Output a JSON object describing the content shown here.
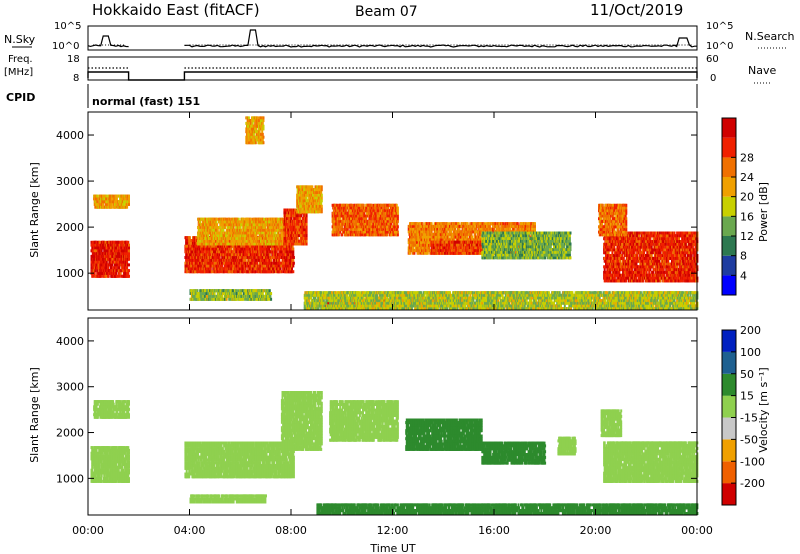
{
  "header": {
    "station": "Hokkaido East (fitACF)",
    "beam": "Beam 07",
    "date": "11/Oct/2019"
  },
  "labels": {
    "nsky": "N.Sky",
    "nsearch": "N.Search",
    "freq_line1": "Freq.",
    "freq_line2": "[MHz]",
    "nave": "Nave",
    "cpid": "CPID",
    "cpid_value": "normal (fast) 151",
    "power_label": "Power [dB]",
    "velocity_label": "Velocity [m s⁻¹]"
  },
  "small_axes": {
    "nsky_top": "10^5",
    "nsky_bot": "10^0",
    "nsearch_top": "10^5",
    "nsearch_bot": "10^0",
    "freq_top": "18",
    "freq_bot": "8",
    "nave_top": "60",
    "nave_bot": "0"
  },
  "colors": {
    "power": [
      "#0000ff",
      "#1e3ca0",
      "#2d7850",
      "#6aa84f",
      "#c8d000",
      "#f0a000",
      "#f07000",
      "#f02000",
      "#d00000"
    ],
    "velocity": [
      "#d00000",
      "#f06000",
      "#f0a000",
      "#c8c8c8",
      "#8fd04f",
      "#2d8a2d",
      "#1e6090",
      "#0020c0"
    ]
  },
  "chart_data": [
    {
      "type": "heatmap",
      "name": "Power",
      "xlabel": "",
      "ylabel": "Slant Range [km]",
      "xlim_hours": [
        0,
        24
      ],
      "ylim_km": [
        200,
        4500
      ],
      "yticks": [
        "1000",
        "2000",
        "3000",
        "4000"
      ],
      "colorbar_label": "Power [dB]",
      "colorbar_ticks": [
        "4",
        "8",
        "12",
        "16",
        "20",
        "24",
        "28"
      ],
      "colorbar_range": [
        0,
        32
      ],
      "regions": [
        {
          "t0": 0.1,
          "t1": 1.6,
          "r0": 900,
          "r1": 1700,
          "value": 28
        },
        {
          "t0": 0.2,
          "t1": 1.6,
          "r0": 2400,
          "r1": 2700,
          "value": 20
        },
        {
          "t0": 3.8,
          "t1": 8.1,
          "r0": 1000,
          "r1": 1800,
          "value": 27
        },
        {
          "t0": 4.3,
          "t1": 8.0,
          "r0": 1600,
          "r1": 2200,
          "value": 20
        },
        {
          "t0": 4.0,
          "t1": 7.2,
          "r0": 400,
          "r1": 650,
          "value": 14
        },
        {
          "t0": 7.7,
          "t1": 8.6,
          "r0": 1600,
          "r1": 2400,
          "value": 26
        },
        {
          "t0": 8.2,
          "t1": 9.2,
          "r0": 2300,
          "r1": 2900,
          "value": 20
        },
        {
          "t0": 9.6,
          "t1": 12.2,
          "r0": 1800,
          "r1": 2500,
          "value": 24
        },
        {
          "t0": 6.2,
          "t1": 6.9,
          "r0": 3800,
          "r1": 4400,
          "value": 20
        },
        {
          "t0": 9.2,
          "t1": 12.5,
          "r0": 250,
          "r1": 450,
          "value": 26
        },
        {
          "t0": 12.6,
          "t1": 17.6,
          "r0": 1400,
          "r1": 2100,
          "value": 22
        },
        {
          "t0": 13.5,
          "t1": 15.8,
          "r0": 1400,
          "r1": 1700,
          "value": 26
        },
        {
          "t0": 15.5,
          "t1": 19.0,
          "r0": 1300,
          "r1": 1900,
          "value": 13
        },
        {
          "t0": 20.3,
          "t1": 24.0,
          "r0": 800,
          "r1": 1900,
          "value": 27
        },
        {
          "t0": 20.1,
          "t1": 21.2,
          "r0": 1800,
          "r1": 2500,
          "value": 23
        },
        {
          "t0": 8.5,
          "t1": 24.0,
          "r0": 200,
          "r1": 600,
          "value": 15
        }
      ]
    },
    {
      "type": "heatmap",
      "name": "Velocity",
      "xlabel": "Time UT",
      "ylabel": "Slant Range [km]",
      "xlim_hours": [
        0,
        24
      ],
      "ylim_km": [
        200,
        4500
      ],
      "xticks": [
        "00:00",
        "04:00",
        "08:00",
        "12:00",
        "16:00",
        "20:00",
        "00:00"
      ],
      "yticks": [
        "1000",
        "2000",
        "3000",
        "4000"
      ],
      "colorbar_label": "Velocity [m s⁻¹]",
      "colorbar_ticks": [
        "-200",
        "-100",
        "-50",
        "-15",
        "15",
        "50",
        "100",
        "200"
      ],
      "colorbar_range": [
        -250,
        250
      ],
      "regions": [
        {
          "t0": 0.1,
          "t1": 1.6,
          "r0": 900,
          "r1": 1700,
          "value": 0
        },
        {
          "t0": 0.2,
          "t1": 1.6,
          "r0": 2300,
          "r1": 2700,
          "value": 0
        },
        {
          "t0": 3.8,
          "t1": 8.1,
          "r0": 1000,
          "r1": 1800,
          "value": 0
        },
        {
          "t0": 4.0,
          "t1": 7.0,
          "r0": 450,
          "r1": 650,
          "value": 0
        },
        {
          "t0": 7.6,
          "t1": 9.2,
          "r0": 1600,
          "r1": 2900,
          "value": 0
        },
        {
          "t0": 9.5,
          "t1": 12.2,
          "r0": 1800,
          "r1": 2700,
          "value": 0
        },
        {
          "t0": 12.5,
          "t1": 15.5,
          "r0": 1600,
          "r1": 2300,
          "value": 40
        },
        {
          "t0": 15.5,
          "t1": 18.0,
          "r0": 1300,
          "r1": 1800,
          "value": 40
        },
        {
          "t0": 18.5,
          "t1": 19.2,
          "r0": 1500,
          "r1": 1900,
          "value": 10
        },
        {
          "t0": 20.3,
          "t1": 24.0,
          "r0": 900,
          "r1": 1800,
          "value": 0
        },
        {
          "t0": 20.2,
          "t1": 21.0,
          "r0": 1900,
          "r1": 2500,
          "value": 0
        },
        {
          "t0": 9.0,
          "t1": 24.0,
          "r0": 200,
          "r1": 450,
          "value": 30
        }
      ]
    }
  ]
}
